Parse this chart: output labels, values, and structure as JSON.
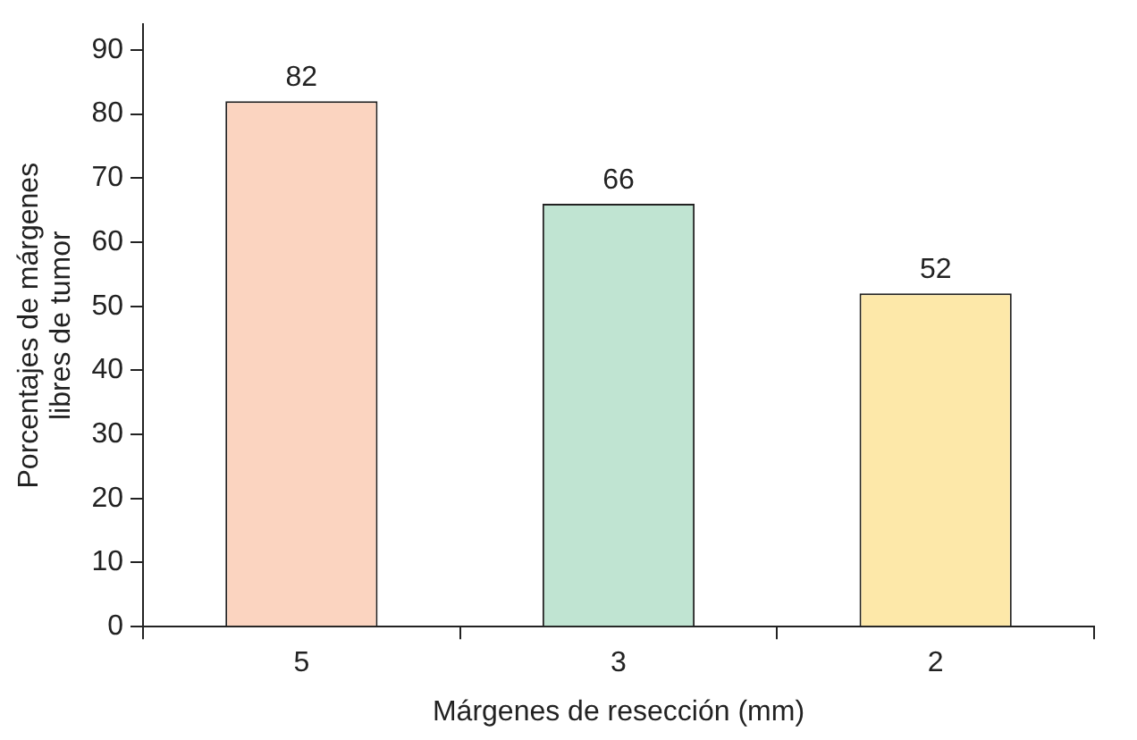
{
  "chart_data": {
    "type": "bar",
    "xlabel": "Márgenes de resección (mm)",
    "ylabel": "Porcentajes de márgenes\nlibres de tumor",
    "categories": [
      "5",
      "3",
      "2"
    ],
    "values": [
      82,
      66,
      52
    ],
    "colors": [
      "#fbd4c0",
      "#c0e4d2",
      "#fde8a9"
    ],
    "ylim": [
      0,
      94
    ],
    "yticks": [
      0,
      10,
      20,
      30,
      40,
      50,
      60,
      70,
      80,
      90
    ],
    "data_labels": true,
    "grid": false,
    "legend": false
  }
}
